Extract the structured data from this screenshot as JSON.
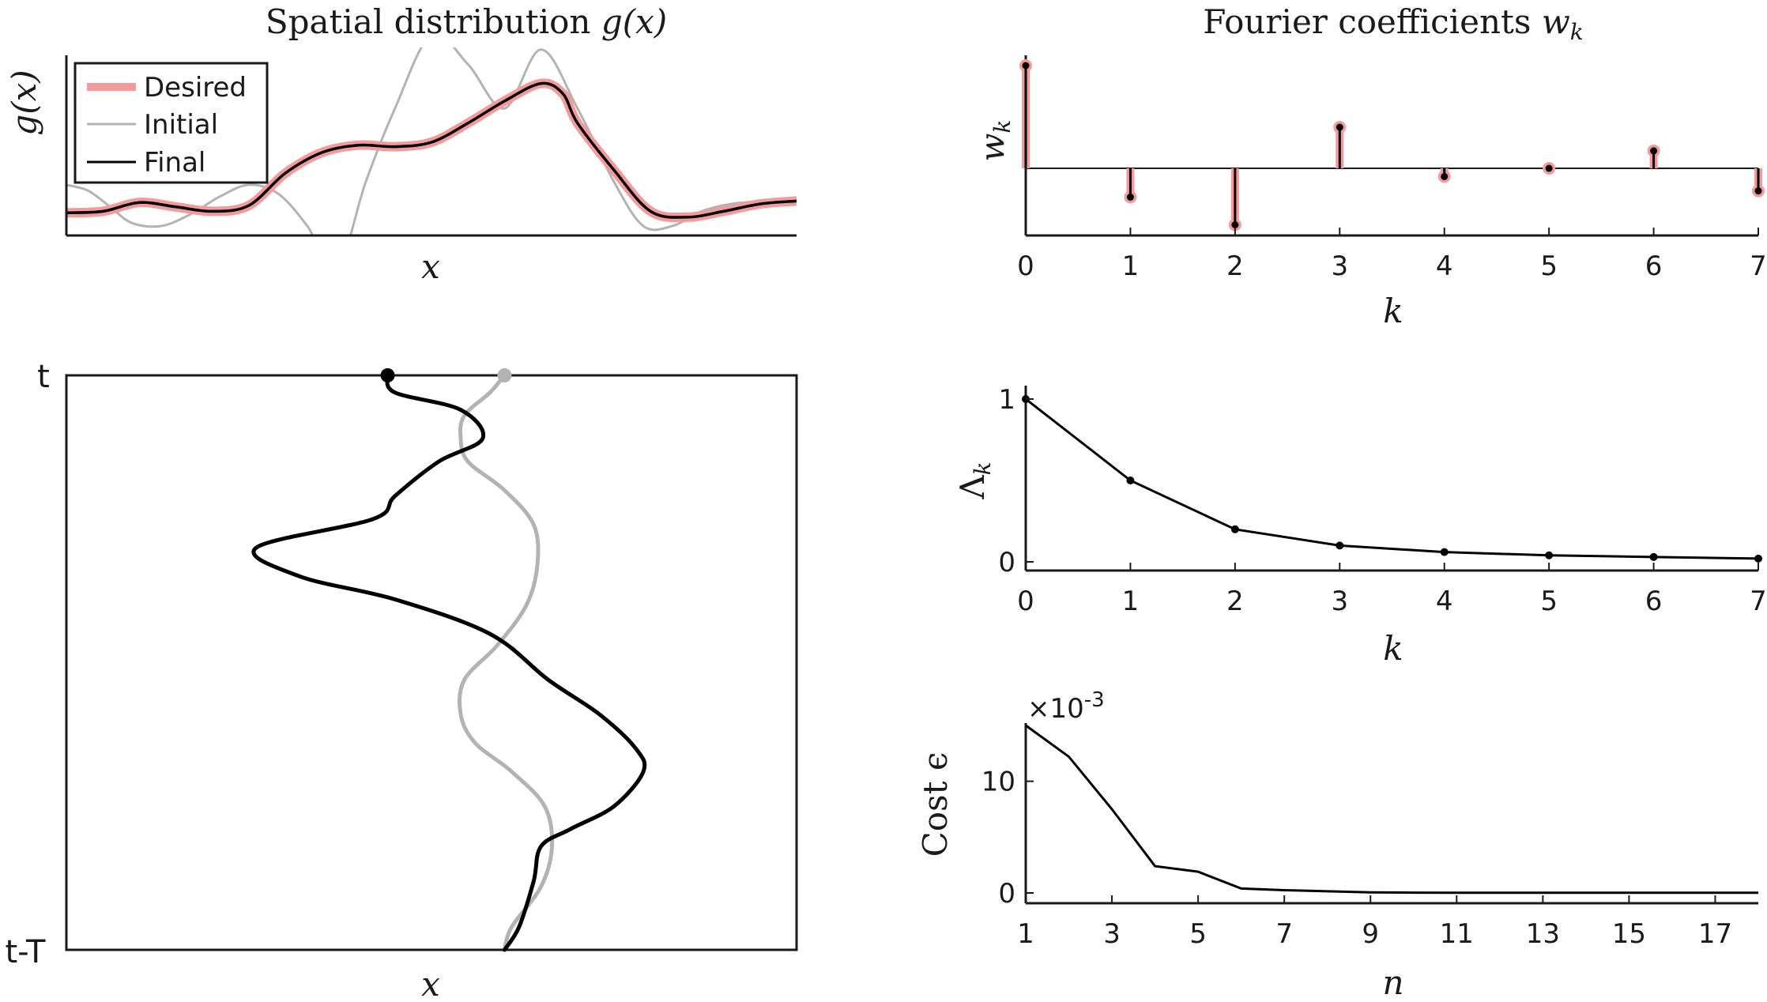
{
  "panels": {
    "spatial": {
      "title_main": "Spatial distribution ",
      "title_var": "g(x)",
      "ylabel": "g(x)",
      "xlabel": "x"
    },
    "fourier": {
      "title_main": "Fourier coefficients ",
      "title_var": "w",
      "title_sub": "k",
      "ylabel_main": "w",
      "ylabel_sub": "k",
      "xlabel": "k"
    },
    "trajectory": {
      "ylabel_top": "t",
      "ylabel_bottom": "t-T",
      "xlabel": "x"
    },
    "lambda": {
      "ylabel_main": "Λ",
      "ylabel_sub": "k",
      "xlabel": "k"
    },
    "cost": {
      "ylabel": "Cost ϵ",
      "xlabel": "n",
      "multiplier_base": "×10",
      "multiplier_exp": "-3"
    }
  },
  "legend": {
    "desired": "Desired",
    "initial": "Initial",
    "final": "Final"
  },
  "colors": {
    "desired": "#f59a9a",
    "initial": "#b3b3b3",
    "final": "#000000",
    "axes": "#1a1a1a"
  },
  "chart_data": [
    {
      "type": "line",
      "name": "spatial-distribution",
      "grid": false,
      "legend_position": "top-left",
      "x_range": [
        0,
        1
      ],
      "series": [
        {
          "name": "Desired",
          "x": [
            0,
            0.05,
            0.1,
            0.15,
            0.2,
            0.25,
            0.3,
            0.35,
            0.4,
            0.45,
            0.5,
            0.55,
            0.6,
            0.65,
            0.68,
            0.7,
            0.75,
            0.8,
            0.85,
            0.9,
            0.95,
            1.0
          ],
          "y": [
            0.09,
            0.1,
            0.16,
            0.13,
            0.1,
            0.14,
            0.36,
            0.5,
            0.55,
            0.54,
            0.57,
            0.7,
            0.85,
            0.97,
            0.9,
            0.7,
            0.38,
            0.1,
            0.06,
            0.1,
            0.15,
            0.17
          ]
        },
        {
          "name": "Initial",
          "x": [
            0,
            0.03,
            0.06,
            0.09,
            0.13,
            0.17,
            0.21,
            0.25,
            0.29,
            0.33,
            0.37,
            0.41,
            0.45,
            0.5,
            0.55,
            0.6,
            0.65,
            0.7,
            0.75,
            0.79,
            0.83,
            0.87,
            0.91,
            0.96,
            1.0
          ],
          "y": [
            0.28,
            0.24,
            0.13,
            0.02,
            0.0,
            0.08,
            0.2,
            0.28,
            0.22,
            0.0,
            -0.3,
            0.3,
            0.8,
            1.3,
            1.1,
            0.8,
            1.2,
            0.8,
            0.3,
            0.0,
            0.0,
            0.1,
            0.15,
            0.17,
            0.17
          ]
        },
        {
          "name": "Final",
          "x": [
            0,
            0.05,
            0.1,
            0.15,
            0.2,
            0.25,
            0.3,
            0.35,
            0.4,
            0.45,
            0.5,
            0.55,
            0.6,
            0.65,
            0.68,
            0.7,
            0.75,
            0.8,
            0.85,
            0.9,
            0.95,
            1.0
          ],
          "y": [
            0.09,
            0.1,
            0.16,
            0.13,
            0.1,
            0.14,
            0.36,
            0.5,
            0.55,
            0.54,
            0.57,
            0.7,
            0.85,
            0.97,
            0.9,
            0.7,
            0.38,
            0.1,
            0.06,
            0.1,
            0.15,
            0.17
          ]
        }
      ]
    },
    {
      "type": "bar",
      "name": "fourier-coefficients",
      "categories": [
        0,
        1,
        2,
        3,
        4,
        5,
        6,
        7
      ],
      "x_ticks": [
        0,
        1,
        2,
        3,
        4,
        5,
        6,
        7
      ],
      "grid": false,
      "series": [
        {
          "name": "Desired",
          "values": [
            1.0,
            -0.28,
            -0.55,
            0.4,
            -0.08,
            0.0,
            0.17,
            -0.22
          ]
        },
        {
          "name": "Final",
          "values": [
            1.0,
            -0.28,
            -0.55,
            0.4,
            -0.08,
            0.0,
            0.17,
            -0.22
          ]
        }
      ]
    },
    {
      "type": "line",
      "name": "trajectory",
      "grid": false,
      "series": [
        {
          "name": "Initial",
          "x": [
            0.6,
            0.58,
            0.545,
            0.54,
            0.55,
            0.6,
            0.64,
            0.645,
            0.63,
            0.59,
            0.545,
            0.54,
            0.56,
            0.61,
            0.655,
            0.665,
            0.65,
            0.61,
            0.6
          ],
          "t": [
            1.0,
            0.97,
            0.93,
            0.89,
            0.85,
            0.8,
            0.74,
            0.67,
            0.6,
            0.53,
            0.47,
            0.41,
            0.36,
            0.31,
            0.25,
            0.18,
            0.11,
            0.04,
            0.0
          ]
        },
        {
          "name": "Final",
          "x": [
            0.44,
            0.45,
            0.54,
            0.57,
            0.51,
            0.45,
            0.42,
            0.26,
            0.32,
            0.45,
            0.58,
            0.66,
            0.73,
            0.78,
            0.79,
            0.75,
            0.69,
            0.65,
            0.64,
            0.62,
            0.6
          ],
          "t": [
            1.0,
            0.97,
            0.94,
            0.89,
            0.85,
            0.79,
            0.75,
            0.7,
            0.65,
            0.61,
            0.55,
            0.47,
            0.41,
            0.35,
            0.31,
            0.25,
            0.21,
            0.18,
            0.12,
            0.04,
            0.0
          ]
        }
      ]
    },
    {
      "type": "line",
      "name": "lambda-k",
      "x": [
        0,
        1,
        2,
        3,
        4,
        5,
        6,
        7
      ],
      "x_ticks": [
        0,
        1,
        2,
        3,
        4,
        5,
        6,
        7
      ],
      "y_ticks": [
        0,
        1
      ],
      "ylim": [
        0,
        1
      ],
      "grid": false,
      "series": [
        {
          "values": [
            1.0,
            0.5,
            0.2,
            0.1,
            0.06,
            0.04,
            0.03,
            0.02
          ]
        }
      ]
    },
    {
      "type": "line",
      "name": "cost",
      "x": [
        1,
        2,
        3,
        4,
        5,
        6,
        7,
        8,
        9,
        10,
        11,
        12,
        13,
        14,
        15,
        16,
        17,
        18
      ],
      "x_ticks": [
        1,
        3,
        5,
        7,
        9,
        11,
        13,
        15,
        17
      ],
      "y_ticks": [
        0,
        10
      ],
      "y_multiplier": "×10^-3",
      "grid": false,
      "series": [
        {
          "values": [
            15.0,
            12.2,
            7.5,
            2.4,
            1.9,
            0.4,
            0.25,
            0.15,
            0.05,
            0.03,
            0.02,
            0.02,
            0.02,
            0.02,
            0.02,
            0.02,
            0.02,
            0.02
          ]
        }
      ]
    }
  ]
}
